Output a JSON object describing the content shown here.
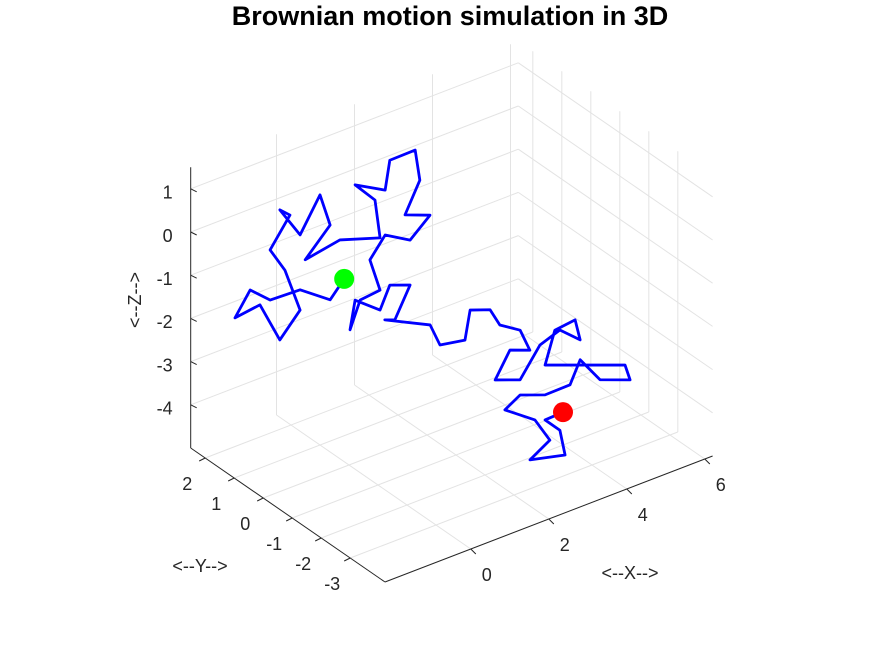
{
  "chart_data": {
    "type": "line3d",
    "title": "Brownian motion simulation in 3D",
    "xlabel": "<--X-->",
    "ylabel": "<--Y-->",
    "zlabel": "<--Z-->",
    "xlim": [
      -2.2,
      6.2
    ],
    "ylim": [
      -4.2,
      2.5
    ],
    "zlim": [
      -5,
      1.5
    ],
    "xticks": [
      0,
      2,
      4,
      6
    ],
    "yticks": [
      -3,
      -2,
      -1,
      0,
      1,
      2
    ],
    "zticks": [
      -4,
      -3,
      -2,
      -1,
      0,
      1
    ],
    "grid": true,
    "start_marker_color": "#00ff00",
    "end_marker_color": "#ff0000",
    "series": [
      {
        "color": "#0000ff",
        "x": [
          0.62,
          0.26,
          -0.51,
          -1.28,
          -1.79,
          -2.18,
          -1.54,
          -1.03,
          -0.51,
          -0.9,
          -1.28,
          -0.77,
          -1.03,
          -0.51,
          0,
          0.26,
          -0.38,
          0.51,
          1.54,
          1.41,
          0.9,
          1.67,
          1.79,
          2.44,
          2.56,
          2.18,
          2.82,
          2.31,
          1.67,
          1.28,
          1.54,
          1.03,
          0.77,
          0.9,
          1.54,
          1.79,
          2.31,
          1.92,
          1.29,
          2.08,
          1.96,
          2.23,
          1.99,
          2.13,
          2.38,
          2.9,
          3.15,
          2.64,
          2.26,
          2.9,
          3.41,
          3.92,
          4.44,
          4.31,
          3.79,
          3.54,
          4.95,
          5.59,
          5.72,
          4.95,
          4.44,
          4.18,
          3.54,
          2.9,
          2.51,
          3.28,
          2.92,
          2.41,
          3.31,
          3.92,
          3.54,
          4.0
        ],
        "y": [
          1,
          1,
          1,
          1,
          1,
          1,
          1,
          1,
          1,
          1,
          1,
          1,
          1,
          1,
          1,
          1,
          1,
          1,
          1,
          1,
          1,
          1,
          1,
          1,
          1,
          1,
          1,
          1,
          1,
          1,
          1,
          1,
          1,
          1,
          1,
          1,
          1,
          1,
          0.5,
          0,
          -0.5,
          -1,
          -1.5,
          -2,
          -2,
          -2,
          -2,
          -2,
          -2,
          -2,
          -2,
          -2,
          -2,
          -2,
          -2,
          -2,
          -2,
          -2,
          -2,
          -2,
          -2,
          -2,
          -2,
          -2,
          -2,
          -2,
          -3,
          -3,
          -3,
          -2,
          -2,
          -2
        ],
        "z": [
          -1.37,
          -1.73,
          -1.23,
          -1.2,
          -0.79,
          -1.3,
          -1.22,
          -2.21,
          -1.7,
          -0.64,
          -0.04,
          0.59,
          0.8,
          0.04,
          0.79,
          0.0,
          -0.58,
          -0.43,
          -0.74,
          0.18,
          0.71,
          0.32,
          0.97,
          0.98,
          0.24,
          -0.43,
          -0.66,
          -1.06,
          -0.72,
          -1.16,
          -1.95,
          -2.0,
          -2.6,
          -1.96,
          -2.41,
          -1.92,
          -2.1,
          -2.77,
          -2.32,
          -2.48,
          -2.67,
          -2.42,
          -1.41,
          -1.22,
          -1.66,
          -1.96,
          -2.51,
          -2.33,
          -2.89,
          -3.11,
          -2.48,
          -2.31,
          -2.72,
          -2.21,
          -2.27,
          -2.99,
          -3.48,
          -3.7,
          -4.09,
          -3.82,
          -3.18,
          -3.67,
          -3.68,
          -3.46,
          -3.67,
          -4.17,
          -4.05,
          -4.33,
          -4.53,
          -4.63,
          -4.26,
          -4.24
        ]
      }
    ]
  }
}
